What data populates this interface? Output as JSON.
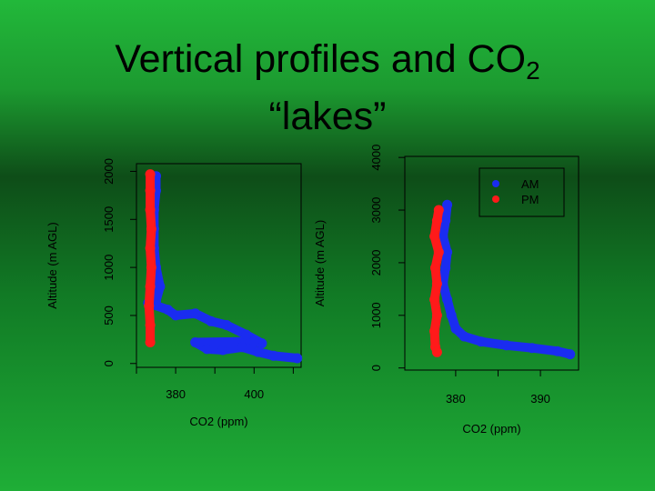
{
  "title": {
    "line1_main": "Vertical profiles and CO",
    "line1_sub": "2",
    "line2": "“lakes”"
  },
  "colors": {
    "am": "#1a2cf0",
    "pm": "#ff1a1a",
    "frame": "#000000"
  },
  "chart_data": [
    {
      "type": "scatter",
      "xlabel": "CO2 (ppm)",
      "ylabel": "Altitude (m AGL)",
      "xlim": [
        370,
        412
      ],
      "ylim": [
        -40,
        2080
      ],
      "xticks": [
        370,
        380,
        390,
        400,
        410
      ],
      "xtick_labels": [
        "",
        "380",
        "",
        "400",
        ""
      ],
      "yticks": [
        0,
        500,
        1000,
        1500,
        2000
      ],
      "ytick_labels": [
        "0",
        "500",
        "1000",
        "1500",
        "2000"
      ],
      "legend": null,
      "series": [
        {
          "key": "am",
          "points": [
            [
              375,
              1950
            ],
            [
              375,
              1800
            ],
            [
              374.5,
              1600
            ],
            [
              374.5,
              1400
            ],
            [
              374.5,
              1200
            ],
            [
              375,
              1000
            ],
            [
              376,
              800
            ],
            [
              375,
              650
            ],
            [
              373,
              630
            ],
            [
              378,
              560
            ],
            [
              380,
              500
            ],
            [
              385,
              520
            ],
            [
              389,
              440
            ],
            [
              393,
              400
            ],
            [
              398,
              300
            ],
            [
              402,
              210
            ],
            [
              400,
              230
            ],
            [
              385,
              220
            ],
            [
              388,
              150
            ],
            [
              392,
              140
            ],
            [
              397,
              170
            ],
            [
              401,
              120
            ],
            [
              405,
              80
            ],
            [
              411,
              55
            ]
          ]
        },
        {
          "key": "pm",
          "points": [
            [
              373.5,
              1970
            ],
            [
              373.5,
              1800
            ],
            [
              373.5,
              1600
            ],
            [
              373.8,
              1400
            ],
            [
              373.5,
              1200
            ],
            [
              373.8,
              1000
            ],
            [
              373.5,
              800
            ],
            [
              373.2,
              600
            ],
            [
              373.5,
              400
            ],
            [
              373.5,
              220
            ]
          ]
        }
      ]
    },
    {
      "type": "scatter",
      "xlabel": "CO2 (ppm)",
      "ylabel": "Altitude (m AGL)",
      "xlim": [
        374,
        394.5
      ],
      "ylim": [
        -40,
        4020
      ],
      "xticks": [
        380,
        385,
        390
      ],
      "xtick_labels": [
        "380",
        "",
        "390"
      ],
      "yticks": [
        0,
        1000,
        2000,
        3000,
        4000
      ],
      "ytick_labels": [
        "0",
        "1000",
        "2000",
        "3000",
        "4000"
      ],
      "legend": {
        "position": "top-right",
        "entries": [
          {
            "key": "am",
            "label": "AM"
          },
          {
            "key": "pm",
            "label": "PM"
          }
        ]
      },
      "series": [
        {
          "key": "am",
          "points": [
            [
              379,
              3100
            ],
            [
              378.8,
              2800
            ],
            [
              378.5,
              2500
            ],
            [
              379,
              2200
            ],
            [
              378.8,
              1900
            ],
            [
              378.5,
              1600
            ],
            [
              379,
              1300
            ],
            [
              379.5,
              1000
            ],
            [
              380,
              750
            ],
            [
              381,
              600
            ],
            [
              383,
              500
            ],
            [
              386,
              430
            ],
            [
              389,
              380
            ],
            [
              392,
              320
            ],
            [
              393.5,
              260
            ]
          ]
        },
        {
          "key": "pm",
          "points": [
            [
              378,
              3000
            ],
            [
              377.8,
              2800
            ],
            [
              377.5,
              2500
            ],
            [
              378,
              2200
            ],
            [
              377.6,
              1900
            ],
            [
              377.8,
              1600
            ],
            [
              377.5,
              1300
            ],
            [
              377.8,
              1000
            ],
            [
              377.5,
              700
            ],
            [
              377.6,
              400
            ],
            [
              377.8,
              300
            ]
          ]
        }
      ]
    }
  ]
}
